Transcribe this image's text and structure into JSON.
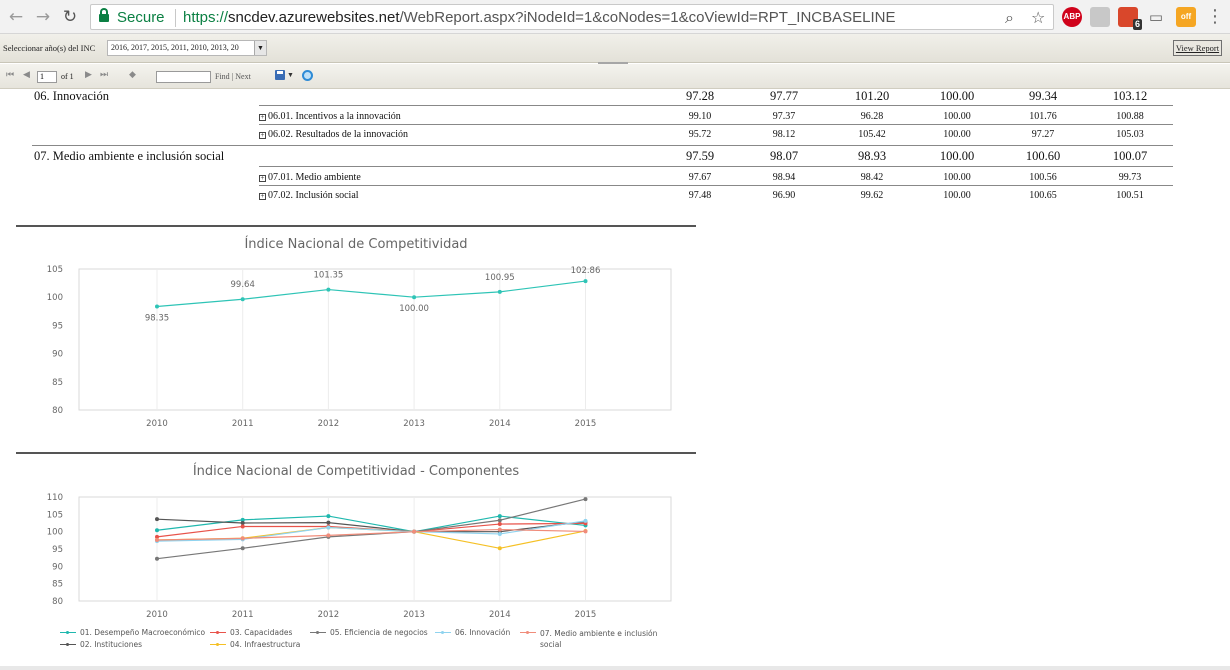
{
  "browser": {
    "secure_label": "Secure",
    "url_scheme": "https://",
    "url_host": "sncdev.azurewebsites.net",
    "url_path": "/WebReport.aspx?iNodeId=1&coNodes=1&coViewId=RPT_INCBASELINE",
    "ext_abp": "ABP",
    "ext_todo_badge": "6",
    "ext_honey": "off"
  },
  "params": {
    "label": "Seleccionar año(s) del INC",
    "selected": "2016, 2017, 2015, 2011, 2010, 2013, 20",
    "view_report": "View Report"
  },
  "toolbar": {
    "page_value": "1",
    "page_of": "of 1",
    "find_next": "Find | Next"
  },
  "table": {
    "rows": [
      {
        "name": "06. Innovación",
        "kind": "main",
        "values": [
          "97.28",
          "97.77",
          "101.20",
          "100.00",
          "99.34",
          "103.12"
        ]
      },
      {
        "name": "06.01. Incentivos a la innovación",
        "kind": "sub",
        "values": [
          "99.10",
          "97.37",
          "96.28",
          "100.00",
          "101.76",
          "100.88"
        ]
      },
      {
        "name": "06.02. Resultados de la innovación",
        "kind": "sub",
        "values": [
          "95.72",
          "98.12",
          "105.42",
          "100.00",
          "97.27",
          "105.03"
        ]
      },
      {
        "name": "07. Medio ambiente e inclusión social",
        "kind": "main",
        "values": [
          "97.59",
          "98.07",
          "98.93",
          "100.00",
          "100.60",
          "100.07"
        ]
      },
      {
        "name": "07.01. Medio ambiente",
        "kind": "sub",
        "values": [
          "97.67",
          "98.94",
          "98.42",
          "100.00",
          "100.56",
          "99.73"
        ]
      },
      {
        "name": "07.02. Inclusión social",
        "kind": "sub",
        "values": [
          "97.48",
          "96.90",
          "99.62",
          "100.00",
          "100.65",
          "100.51"
        ]
      }
    ]
  },
  "chart_data": [
    {
      "type": "line",
      "title": "Índice Nacional de Competitividad",
      "x": [
        "2010",
        "2011",
        "2012",
        "2013",
        "2014",
        "2015"
      ],
      "ylim": [
        80,
        105
      ],
      "yticks": [
        "80",
        "85",
        "90",
        "95",
        "100",
        "105"
      ],
      "grid": true,
      "series": [
        {
          "values": [
            98.35,
            99.64,
            101.35,
            100.0,
            100.95,
            102.86
          ],
          "color": "#2ec4b6"
        }
      ],
      "data_labels": [
        "98.35",
        "99.64",
        "101.35",
        "100.00",
        "100.95",
        "102.86"
      ]
    },
    {
      "type": "line",
      "title": "Índice Nacional de Competitividad - Componentes",
      "x": [
        "2010",
        "2011",
        "2012",
        "2013",
        "2014",
        "2015"
      ],
      "ylim": [
        80,
        110
      ],
      "yticks": [
        "80",
        "85",
        "90",
        "95",
        "100",
        "105",
        "110"
      ],
      "grid": true,
      "legend_position": "bottom",
      "series": [
        {
          "name": "01. Desempeño Macroeconómico",
          "color": "#1fb8ae",
          "values": [
            100.4,
            103.4,
            104.5,
            100.0,
            104.5,
            101.8
          ]
        },
        {
          "name": "02. Instituciones",
          "color": "#555555",
          "values": [
            103.6,
            102.5,
            102.6,
            100.0,
            100.0,
            102.9
          ]
        },
        {
          "name": "03. Capacidades",
          "color": "#e8534a",
          "values": [
            98.5,
            101.5,
            101.5,
            100.0,
            102.2,
            102.4
          ]
        },
        {
          "name": "04. Infraestructura",
          "color": "#f5c025",
          "values": [
            97.6,
            98.1,
            101.2,
            100.0,
            95.2,
            100.2
          ]
        },
        {
          "name": "05. Eficiencia de negocios",
          "color": "#777777",
          "values": [
            92.2,
            95.2,
            98.5,
            100.0,
            103.3,
            109.4
          ]
        },
        {
          "name": "06. Innovación",
          "color": "#8fd3ef",
          "values": [
            97.28,
            97.77,
            101.2,
            100.0,
            99.34,
            103.12
          ]
        },
        {
          "name": "07. Medio ambiente e inclusión social",
          "color": "#f08c7a",
          "values": [
            97.59,
            98.07,
            98.93,
            100.0,
            100.6,
            100.07
          ]
        }
      ]
    }
  ]
}
